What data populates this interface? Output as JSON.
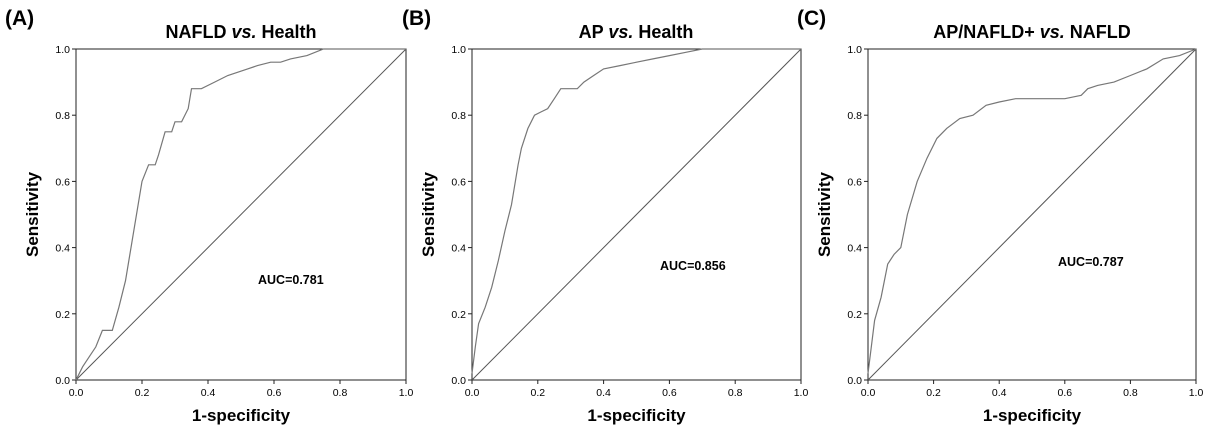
{
  "chart_data": [
    {
      "type": "line",
      "panel_label": "(A)",
      "title_parts": [
        {
          "text": "NAFLD ",
          "italic": false
        },
        {
          "text": "vs.",
          "italic": true
        },
        {
          "text": " Health",
          "italic": false
        }
      ],
      "xlabel": "1-specificity",
      "ylabel": "Sensitivity",
      "xlim": [
        0,
        1
      ],
      "ylim": [
        0,
        1
      ],
      "xticks": [
        "0.0",
        "0.2",
        "0.4",
        "0.6",
        "0.8",
        "1.0"
      ],
      "yticks": [
        "0.0",
        "0.2",
        "0.4",
        "0.6",
        "0.8",
        "1.0"
      ],
      "annotation": "AUC=0.781",
      "reference_line": true,
      "series": [
        {
          "x": [
            0,
            0.02,
            0.04,
            0.06,
            0.08,
            0.11,
            0.13,
            0.15,
            0.17,
            0.2,
            0.22,
            0.24,
            0.25,
            0.27,
            0.29,
            0.3,
            0.32,
            0.34,
            0.35,
            0.36,
            0.38,
            0.42,
            0.46,
            0.52,
            0.55,
            0.59,
            0.62,
            0.65,
            0.7,
            0.75,
            1.0
          ],
          "y": [
            0,
            0.04,
            0.07,
            0.1,
            0.15,
            0.15,
            0.22,
            0.3,
            0.42,
            0.6,
            0.65,
            0.65,
            0.68,
            0.75,
            0.75,
            0.78,
            0.78,
            0.82,
            0.88,
            0.88,
            0.88,
            0.9,
            0.92,
            0.94,
            0.95,
            0.96,
            0.96,
            0.97,
            0.98,
            1.0,
            1.0
          ]
        }
      ]
    },
    {
      "type": "line",
      "panel_label": "(B)",
      "title_parts": [
        {
          "text": "AP ",
          "italic": false
        },
        {
          "text": "vs.",
          "italic": true
        },
        {
          "text": " Health",
          "italic": false
        }
      ],
      "xlabel": "1-specificity",
      "ylabel": "Sensitivity",
      "xlim": [
        0,
        1
      ],
      "ylim": [
        0,
        1
      ],
      "xticks": [
        "0.0",
        "0.2",
        "0.4",
        "0.6",
        "0.8",
        "1.0"
      ],
      "yticks": [
        "0.0",
        "0.2",
        "0.4",
        "0.6",
        "0.8",
        "1.0"
      ],
      "annotation": "AUC=0.856",
      "reference_line": true,
      "series": [
        {
          "x": [
            0,
            0.01,
            0.02,
            0.04,
            0.06,
            0.08,
            0.1,
            0.12,
            0.14,
            0.15,
            0.17,
            0.19,
            0.21,
            0.23,
            0.25,
            0.27,
            0.29,
            0.32,
            0.34,
            0.37,
            0.4,
            0.45,
            0.5,
            0.55,
            0.6,
            0.65,
            0.7,
            0.8,
            0.9,
            1.0
          ],
          "y": [
            0.02,
            0.1,
            0.17,
            0.22,
            0.28,
            0.36,
            0.45,
            0.53,
            0.65,
            0.7,
            0.76,
            0.8,
            0.81,
            0.82,
            0.85,
            0.88,
            0.88,
            0.88,
            0.9,
            0.92,
            0.94,
            0.95,
            0.96,
            0.97,
            0.98,
            0.99,
            1.0,
            1.0,
            1.0,
            1.0
          ]
        }
      ]
    },
    {
      "type": "line",
      "panel_label": "(C)",
      "title_parts": [
        {
          "text": "AP/NAFLD+ ",
          "italic": false
        },
        {
          "text": "vs.",
          "italic": true
        },
        {
          "text": " NAFLD",
          "italic": false
        }
      ],
      "xlabel": "1-specificity",
      "ylabel": "Sensitivity",
      "xlim": [
        0,
        1
      ],
      "ylim": [
        0,
        1
      ],
      "xticks": [
        "0.0",
        "0.2",
        "0.4",
        "0.6",
        "0.8",
        "1.0"
      ],
      "yticks": [
        "0.0",
        "0.2",
        "0.4",
        "0.6",
        "0.8",
        "1.0"
      ],
      "annotation": "AUC=0.787",
      "reference_line": true,
      "series": [
        {
          "x": [
            0,
            0.01,
            0.02,
            0.04,
            0.06,
            0.08,
            0.1,
            0.12,
            0.15,
            0.18,
            0.21,
            0.24,
            0.28,
            0.32,
            0.36,
            0.4,
            0.45,
            0.5,
            0.55,
            0.6,
            0.65,
            0.67,
            0.7,
            0.75,
            0.8,
            0.85,
            0.9,
            0.95,
            1.0
          ],
          "y": [
            0.02,
            0.1,
            0.18,
            0.25,
            0.35,
            0.38,
            0.4,
            0.5,
            0.6,
            0.67,
            0.73,
            0.76,
            0.79,
            0.8,
            0.83,
            0.84,
            0.85,
            0.85,
            0.85,
            0.85,
            0.86,
            0.88,
            0.89,
            0.9,
            0.92,
            0.94,
            0.97,
            0.98,
            1.0
          ]
        }
      ]
    }
  ]
}
